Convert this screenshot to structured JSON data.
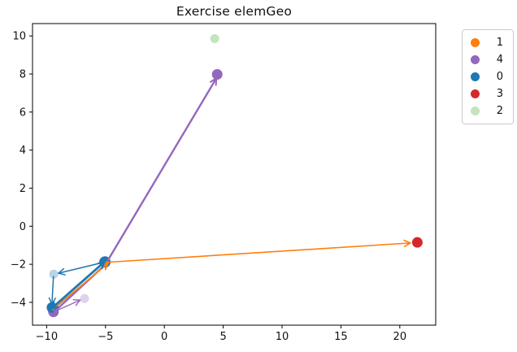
{
  "figure": {
    "background": "#ffffff"
  },
  "chart_data": {
    "type": "scatter",
    "title": "Exercise elemGeo",
    "xlabel": "",
    "ylabel": "",
    "xlim": [
      -11.2,
      23.05
    ],
    "ylim": [
      -5.2,
      10.65
    ],
    "grid": false,
    "frame_color": "#000000",
    "text_color": "#111111",
    "x_ticks": [
      {
        "value": -10,
        "label": "−10"
      },
      {
        "value": -5,
        "label": "−5"
      },
      {
        "value": 0,
        "label": "0"
      },
      {
        "value": 5,
        "label": "5"
      },
      {
        "value": 10,
        "label": "10"
      },
      {
        "value": 15,
        "label": "15"
      },
      {
        "value": 20,
        "label": "20"
      }
    ],
    "y_ticks": [
      {
        "value": 10,
        "label": "10"
      },
      {
        "value": 8,
        "label": "8"
      },
      {
        "value": 6,
        "label": "6"
      },
      {
        "value": 4,
        "label": "4"
      },
      {
        "value": 2,
        "label": "2"
      },
      {
        "value": 0,
        "label": "0"
      },
      {
        "value": -2,
        "label": "−2"
      },
      {
        "value": -4,
        "label": "−4"
      }
    ],
    "legend": {
      "position": "outside-top-right",
      "entries": [
        {
          "label": "1",
          "color": "#ff7f0e"
        },
        {
          "label": "4",
          "color": "#9467bd"
        },
        {
          "label": "0",
          "color": "#1f77b4"
        },
        {
          "label": "3",
          "color": "#d62728"
        },
        {
          "label": "2",
          "color": "#c4e3c0"
        }
      ]
    },
    "points": [
      {
        "name": "2",
        "x": 4.28,
        "y": 9.86,
        "r": 5.5,
        "color": "#c4e3c0"
      },
      {
        "name": "0-ghost",
        "x": -9.4,
        "y": -2.52,
        "r": 5.5,
        "color": "#b9d4e8"
      },
      {
        "name": "4-ghost",
        "x": -6.78,
        "y": -3.8,
        "r": 5.5,
        "color": "#ded2ec"
      },
      {
        "name": "4-start",
        "x": -9.42,
        "y": -4.5,
        "r": 6.5,
        "color": "#9467bd"
      },
      {
        "name": "0-start",
        "x": -9.55,
        "y": -4.27,
        "r": 6.5,
        "color": "#1f77b4"
      },
      {
        "name": "4",
        "x": 4.49,
        "y": 7.98,
        "r": 6.5,
        "color": "#9467bd"
      },
      {
        "name": "3",
        "x": 21.49,
        "y": -0.85,
        "r": 6.5,
        "color": "#d62728"
      },
      {
        "name": "0",
        "x": -5.05,
        "y": -1.88,
        "r": 7.0,
        "color": "#1f77b4"
      }
    ],
    "arrows": [
      {
        "name": "arrow-4-seg1",
        "x1": -9.4,
        "y1": -4.52,
        "x2": -4.98,
        "y2": -2.0,
        "w": 2.4,
        "color": "#9467bd",
        "head": "none"
      },
      {
        "name": "arrow-4-seg2",
        "x1": -4.98,
        "y1": -1.98,
        "x2": 4.42,
        "y2": 7.78,
        "w": 2.4,
        "color": "#9467bd",
        "head": "end"
      },
      {
        "name": "arrow-4-ghost",
        "x1": -9.4,
        "y1": -4.5,
        "x2": -7.15,
        "y2": -3.88,
        "w": 1.4,
        "color": "#9467bd",
        "head": "end"
      },
      {
        "name": "arrow-1-seg1",
        "x1": -9.52,
        "y1": -4.4,
        "x2": -4.78,
        "y2": -1.94,
        "w": 1.8,
        "color": "#ff7f0e",
        "head": "end"
      },
      {
        "name": "arrow-1-seg2",
        "x1": -5.0,
        "y1": -1.9,
        "x2": 20.9,
        "y2": -0.88,
        "w": 1.6,
        "color": "#ff7f0e",
        "head": "end"
      },
      {
        "name": "arrow-0-seg1",
        "x1": -5.05,
        "y1": -1.88,
        "x2": -9.0,
        "y2": -2.47,
        "w": 1.5,
        "color": "#1f77b4",
        "head": "end"
      },
      {
        "name": "arrow-0-seg2",
        "x1": -9.42,
        "y1": -2.62,
        "x2": -9.55,
        "y2": -4.1,
        "w": 1.5,
        "color": "#1f77b4",
        "head": "end"
      },
      {
        "name": "arrow-0-seg3",
        "x1": -9.6,
        "y1": -4.33,
        "x2": -5.08,
        "y2": -1.87,
        "w": 2.8,
        "color": "#1f77b4",
        "head": "both"
      }
    ]
  }
}
